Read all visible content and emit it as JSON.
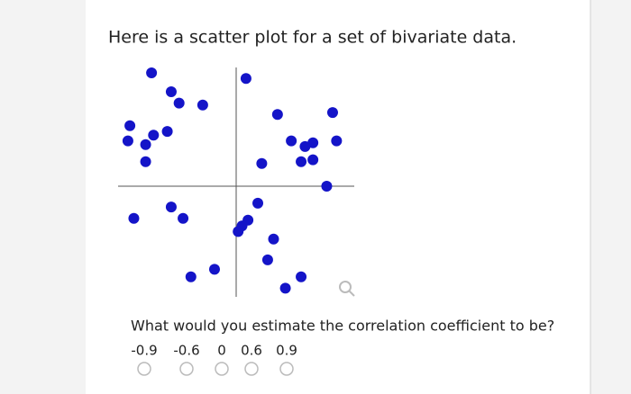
{
  "chart_data": {
    "type": "scatter",
    "title": "Here is a scatter plot for a set of bivariate data.",
    "x": [
      -4.3,
      0.5,
      -3.3,
      -2.9,
      -1.7,
      2.1,
      4.9,
      -5.4,
      -4.2,
      -3.5,
      -5.5,
      -4.6,
      2.8,
      3.9,
      3.5,
      5.1,
      -4.6,
      1.3,
      3.3,
      3.9,
      4.6,
      1.1,
      -5.2,
      -3.3,
      -2.7,
      0.6,
      0.3,
      0.1,
      1.9,
      1.6,
      -1.1,
      -2.3,
      3.3,
      2.5
    ],
    "series": [
      {
        "color": "#1414c8",
        "values": [
          6.0,
          5.7,
          5.0,
          4.4,
          4.3,
          3.8,
          3.9,
          3.2,
          2.7,
          2.9,
          2.4,
          2.2,
          2.4,
          2.3,
          2.1,
          2.4,
          1.3,
          1.2,
          1.3,
          1.4,
          0.0,
          -0.9,
          -1.7,
          -1.1,
          -1.7,
          -1.8,
          -2.1,
          -2.4,
          -2.8,
          -3.9,
          -4.4,
          -4.8,
          -4.8,
          -5.4
        ]
      }
    ],
    "xlim": [
      -6,
      6
    ],
    "ylim": [
      -6,
      6
    ]
  },
  "question": "What would you estimate the correlation coefficient to be?",
  "options": [
    -0.9,
    -0.6,
    0,
    0.6,
    0.9
  ]
}
